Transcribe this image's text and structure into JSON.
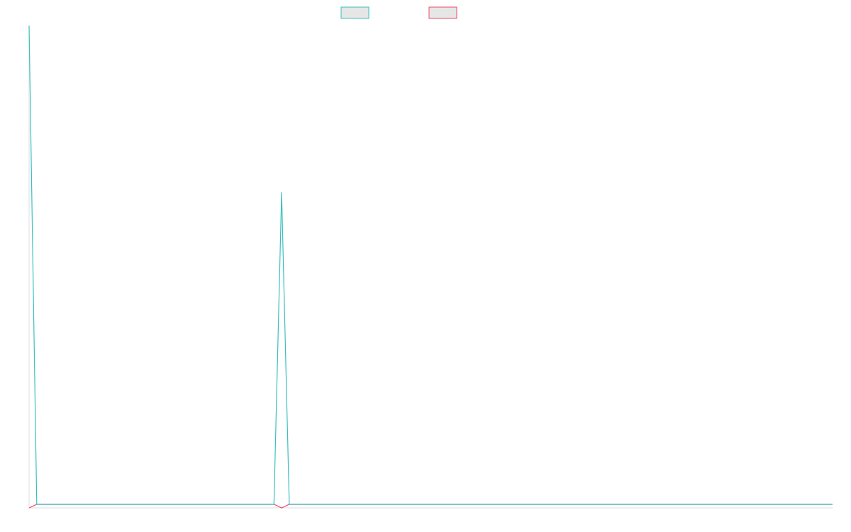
{
  "chart_data": {
    "type": "line",
    "title": "",
    "xlabel": "",
    "ylabel": "",
    "x": [
      0,
      1,
      32,
      33,
      34,
      105
    ],
    "ylim": [
      -0.5,
      66
    ],
    "xlim": [
      0,
      105
    ],
    "grid": false,
    "legend": {
      "placement": "top-center"
    },
    "series": [
      {
        "color": "#3bbfbf",
        "values": [
          66,
          0,
          0,
          43,
          0,
          0
        ]
      },
      {
        "color": "#ee4b6e",
        "values": [
          -0.5,
          0,
          0,
          -0.5,
          0,
          0
        ]
      }
    ]
  }
}
